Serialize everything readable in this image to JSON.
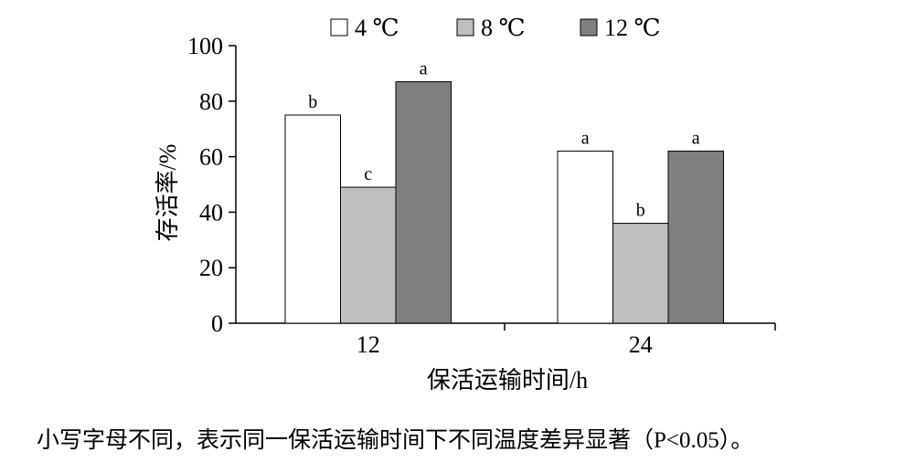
{
  "chart_data": {
    "type": "bar",
    "categories": [
      "12",
      "24"
    ],
    "series": [
      {
        "name": "4 ℃",
        "color": "#ffffff",
        "values": [
          75,
          62
        ],
        "labels": [
          "b",
          "a"
        ]
      },
      {
        "name": "8 ℃",
        "color": "#bfbfbf",
        "values": [
          49,
          36
        ],
        "labels": [
          "c",
          "b"
        ]
      },
      {
        "name": "12 ℃",
        "color": "#7f7f7f",
        "values": [
          87,
          62
        ],
        "labels": [
          "a",
          "a"
        ]
      }
    ],
    "ylim": [
      0,
      100
    ],
    "yticks": [
      0,
      20,
      40,
      60,
      80,
      100
    ],
    "xlabel": "保活运输时间/h",
    "ylabel": "存活率/%",
    "legend_position": "top",
    "grid": false
  },
  "caption": "小写字母不同，表示同一保活运输时间下不同温度差异显著（P<0.05）。"
}
